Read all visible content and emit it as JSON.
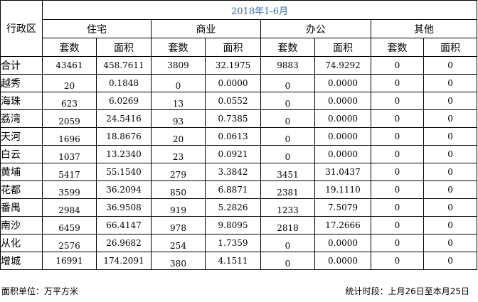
{
  "period": "2018年1-6月",
  "header": {
    "district_label": "行政区",
    "categories": [
      "住宅",
      "商业",
      "办公",
      "其他"
    ],
    "sub_labels": [
      "套数",
      "面积"
    ]
  },
  "rows": [
    {
      "district": "合计",
      "cells": [
        "43461",
        "458.7611",
        "3809",
        "32.1975",
        "9883",
        "74.9292",
        "0",
        "0"
      ]
    },
    {
      "district": "越秀",
      "cells": [
        "20",
        "0.1848",
        "0",
        "0.0000",
        "0",
        "0.0000",
        "0",
        "0"
      ]
    },
    {
      "district": "海珠",
      "cells": [
        "623",
        "6.0269",
        "13",
        "0.0552",
        "0",
        "0.0000",
        "0",
        "0"
      ]
    },
    {
      "district": "荔湾",
      "cells": [
        "2059",
        "24.5416",
        "93",
        "0.7385",
        "0",
        "0.0000",
        "0",
        "0"
      ]
    },
    {
      "district": "天河",
      "cells": [
        "1696",
        "18.8676",
        "20",
        "0.0613",
        "0",
        "0.0000",
        "0",
        "0"
      ]
    },
    {
      "district": "白云",
      "cells": [
        "1037",
        "13.2340",
        "23",
        "0.0921",
        "0",
        "0.0000",
        "0",
        "0"
      ]
    },
    {
      "district": "黄埔",
      "cells": [
        "5417",
        "55.1540",
        "279",
        "3.3842",
        "3451",
        "31.0437",
        "0",
        "0"
      ]
    },
    {
      "district": "花都",
      "cells": [
        "3599",
        "36.2094",
        "850",
        "6.8871",
        "2381",
        "19.1110",
        "0",
        "0"
      ]
    },
    {
      "district": "番禺",
      "cells": [
        "2984",
        "36.9508",
        "919",
        "5.2826",
        "1233",
        "7.5079",
        "0",
        "0"
      ]
    },
    {
      "district": "南沙",
      "cells": [
        "6459",
        "66.4147",
        "978",
        "9.8095",
        "2818",
        "17.2666",
        "0",
        "0"
      ]
    },
    {
      "district": "从化",
      "cells": [
        "2576",
        "26.9682",
        "254",
        "1.7359",
        "0",
        "0.0000",
        "0",
        "0"
      ]
    },
    {
      "district": "增城",
      "cells": [
        "16991",
        "174.2091",
        "380",
        "4.1511",
        "0",
        "0.0000",
        "0",
        "0"
      ]
    }
  ],
  "footer": {
    "unit_note": "面积单位：万平方米",
    "period_note": "统计时段：上月26日至本月25日"
  }
}
